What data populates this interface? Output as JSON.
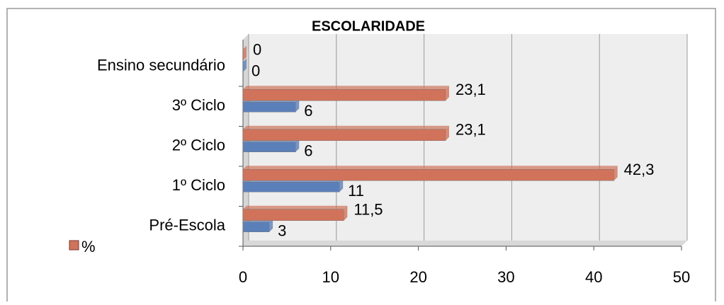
{
  "chart_data": {
    "type": "bar",
    "orientation": "horizontal",
    "title": "ESCOLARIDADE",
    "categories": [
      "Pré-Escola",
      "1º Ciclo",
      "2º Ciclo",
      "3º Ciclo",
      "Ensino secundário"
    ],
    "series": [
      {
        "color": "#5b7fb8",
        "values": [
          3,
          11,
          6,
          6,
          0
        ]
      },
      {
        "name": "%",
        "color": "#d0735a",
        "values": [
          11.5,
          42.3,
          23.1,
          23.1,
          0
        ],
        "value_labels": [
          "11,5",
          "42,3",
          "23,1",
          "23,1",
          "0"
        ]
      }
    ],
    "xlim": [
      0,
      50
    ],
    "xticks": [
      0,
      10,
      20,
      30,
      40,
      50
    ],
    "grid": true,
    "legend": "bottom-left"
  }
}
